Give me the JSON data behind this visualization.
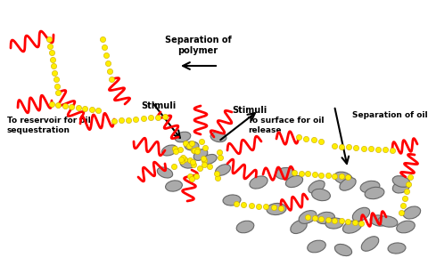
{
  "fig_width": 4.8,
  "fig_height": 2.99,
  "dpi": 100,
  "bg_color": "#ffffff",
  "red_color": "#ff0000",
  "yellow_color": "#ffee00",
  "gray_color": "#aaaaaa",
  "gray_edge": "#666666",
  "yellow_edge": "#ccaa00",
  "text_color": "#000000",
  "font_size": 7.0,
  "font_weight": "bold",
  "labels": {
    "sep_polymer": "Separation of\npolymer",
    "stimuli_left": "Stimuli",
    "stimuli_right": "Stimuli",
    "to_reservoir": "To reservoir for oil\nsequestration",
    "to_surface": "To surface for oil\nrelease",
    "sep_oil": "Separation of oil"
  }
}
